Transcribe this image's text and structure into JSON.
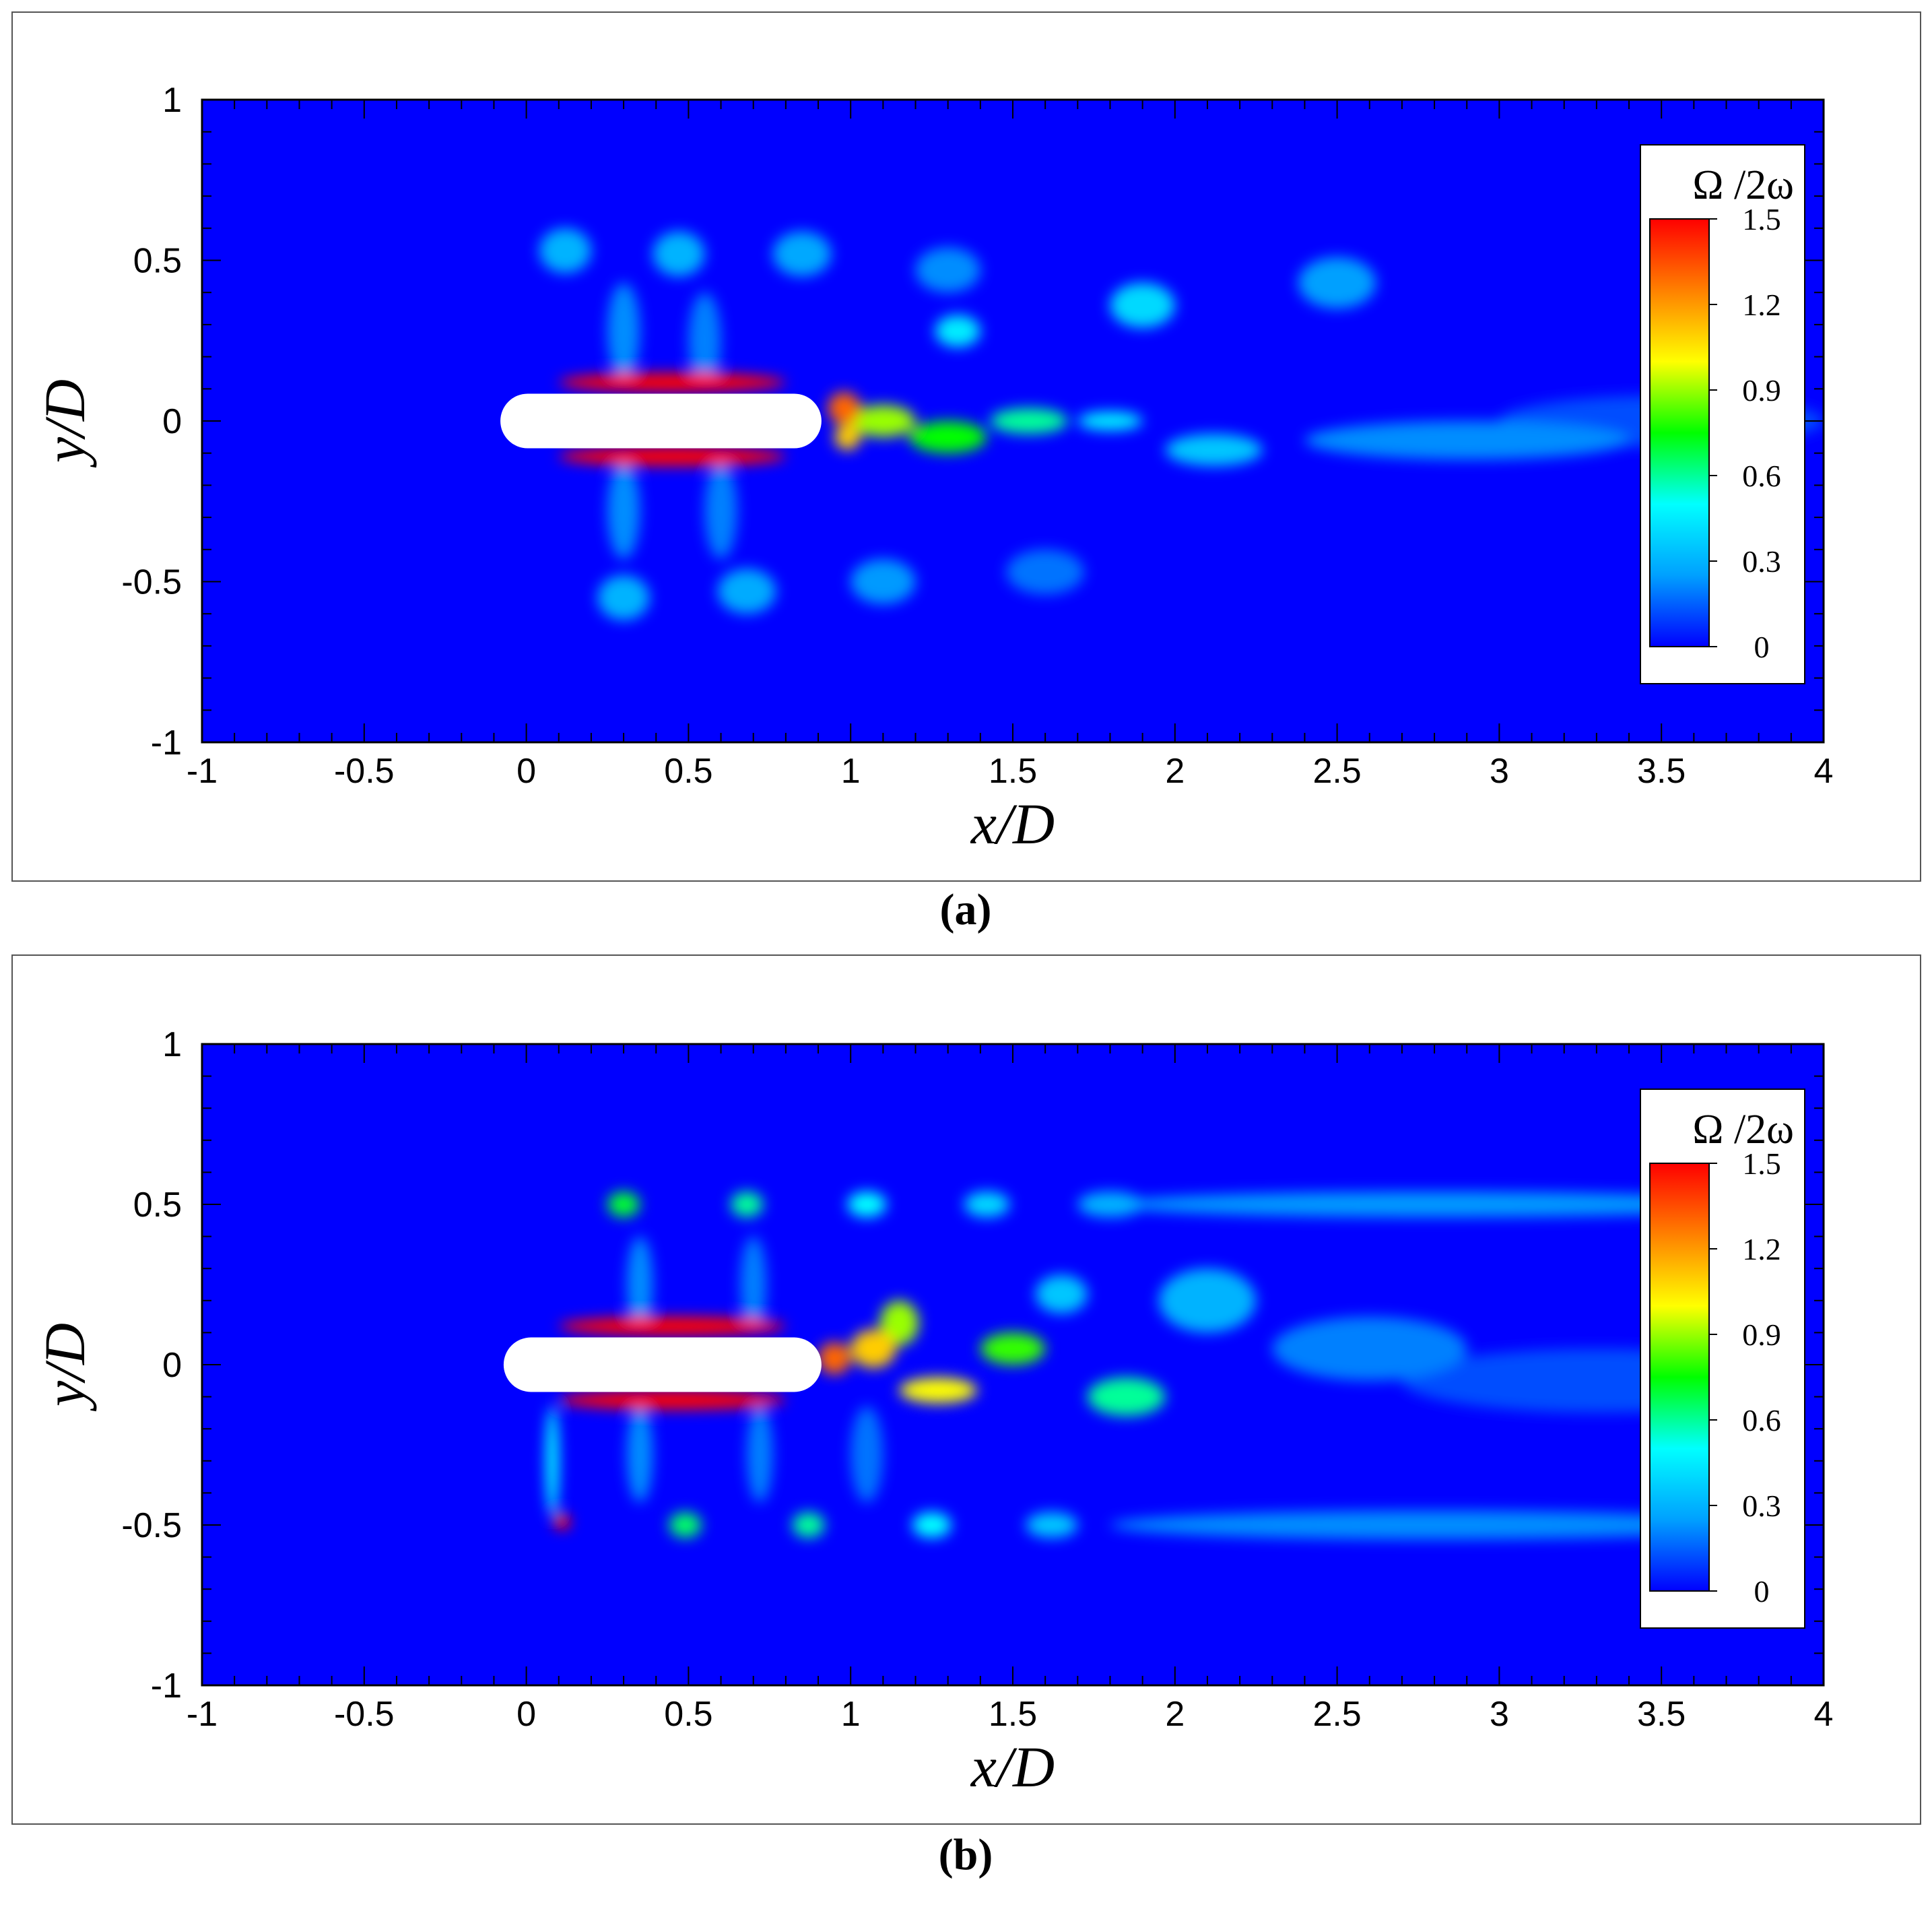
{
  "panel_captions": [
    "(a)",
    "(b)"
  ],
  "chart_data": [
    {
      "type": "heatmap",
      "panel": "(a)",
      "xlabel": "x/D",
      "ylabel": "y/D",
      "xlim": [
        -1,
        4
      ],
      "ylim": [
        -1,
        1
      ],
      "xticks": [
        -1,
        -0.5,
        0,
        0.5,
        1,
        1.5,
        2,
        2.5,
        3,
        3.5,
        4
      ],
      "xtick_labels": [
        "-1",
        "-0.5",
        "0",
        "0.5",
        "1",
        "1.5",
        "2",
        "2.5",
        "3",
        "3.5",
        "4"
      ],
      "yticks": [
        -1,
        -0.5,
        0,
        0.5,
        1
      ],
      "ytick_labels": [
        "-1",
        "-0.5",
        "0",
        "0.5",
        "1"
      ],
      "colorbar": {
        "label": "Ω /2ω",
        "range": [
          0,
          1.5
        ],
        "ticks": [
          0,
          0.3,
          0.6,
          0.9,
          1.2,
          1.5
        ],
        "tick_labels": [
          "0",
          "0.3",
          "0.6",
          "0.9",
          "1.2",
          "1.5"
        ],
        "placement": "right-inside",
        "colors": [
          "#0000ff",
          "#00a0ff",
          "#00ffff",
          "#00ff00",
          "#ffff00",
          "#ff8000",
          "#ff0000"
        ]
      },
      "body": {
        "x_start": -0.08,
        "x_end": 0.91,
        "y_center": 0.0,
        "thickness": 0.17
      },
      "features": [
        {
          "x": 0.45,
          "y": 0.12,
          "sx": 0.35,
          "sy": 0.03,
          "v": 1.5
        },
        {
          "x": 0.45,
          "y": -0.11,
          "sx": 0.35,
          "sy": 0.03,
          "v": 1.5
        },
        {
          "x": 0.98,
          "y": 0.04,
          "sx": 0.05,
          "sy": 0.05,
          "v": 1.3
        },
        {
          "x": 0.99,
          "y": -0.05,
          "sx": 0.04,
          "sy": 0.04,
          "v": 1.1
        },
        {
          "x": 1.1,
          "y": 0.0,
          "sx": 0.1,
          "sy": 0.05,
          "v": 0.9
        },
        {
          "x": 1.3,
          "y": -0.05,
          "sx": 0.12,
          "sy": 0.05,
          "v": 0.75
        },
        {
          "x": 1.55,
          "y": 0.0,
          "sx": 0.12,
          "sy": 0.04,
          "v": 0.6
        },
        {
          "x": 1.8,
          "y": 0.0,
          "sx": 0.1,
          "sy": 0.03,
          "v": 0.45
        },
        {
          "x": 1.33,
          "y": 0.28,
          "sx": 0.07,
          "sy": 0.05,
          "v": 0.45
        },
        {
          "x": 1.9,
          "y": 0.36,
          "sx": 0.1,
          "sy": 0.07,
          "v": 0.4
        },
        {
          "x": 2.5,
          "y": 0.43,
          "sx": 0.12,
          "sy": 0.08,
          "v": 0.25
        },
        {
          "x": 2.12,
          "y": -0.09,
          "sx": 0.15,
          "sy": 0.05,
          "v": 0.35
        },
        {
          "x": 2.9,
          "y": -0.06,
          "sx": 0.5,
          "sy": 0.06,
          "v": 0.22
        },
        {
          "x": 3.5,
          "y": 0.0,
          "sx": 0.5,
          "sy": 0.08,
          "v": 0.12
        },
        {
          "x": 0.12,
          "y": 0.53,
          "sx": 0.08,
          "sy": 0.07,
          "v": 0.3
        },
        {
          "x": 0.47,
          "y": 0.52,
          "sx": 0.08,
          "sy": 0.07,
          "v": 0.3
        },
        {
          "x": 0.85,
          "y": 0.52,
          "sx": 0.09,
          "sy": 0.07,
          "v": 0.27
        },
        {
          "x": 1.3,
          "y": 0.47,
          "sx": 0.1,
          "sy": 0.07,
          "v": 0.22
        },
        {
          "x": 0.3,
          "y": -0.55,
          "sx": 0.08,
          "sy": 0.07,
          "v": 0.3
        },
        {
          "x": 0.68,
          "y": -0.53,
          "sx": 0.09,
          "sy": 0.07,
          "v": 0.28
        },
        {
          "x": 1.1,
          "y": -0.5,
          "sx": 0.1,
          "sy": 0.07,
          "v": 0.24
        },
        {
          "x": 1.6,
          "y": -0.47,
          "sx": 0.12,
          "sy": 0.07,
          "v": 0.18
        },
        {
          "x": 0.3,
          "y": 0.28,
          "sx": 0.05,
          "sy": 0.15,
          "v": 0.22
        },
        {
          "x": 0.55,
          "y": 0.25,
          "sx": 0.05,
          "sy": 0.15,
          "v": 0.2
        },
        {
          "x": 0.3,
          "y": -0.28,
          "sx": 0.05,
          "sy": 0.15,
          "v": 0.22
        },
        {
          "x": 0.6,
          "y": -0.28,
          "sx": 0.05,
          "sy": 0.15,
          "v": 0.2
        }
      ]
    },
    {
      "type": "heatmap",
      "panel": "(b)",
      "xlabel": "x/D",
      "ylabel": "y/D",
      "xlim": [
        -1,
        4
      ],
      "ylim": [
        -1,
        1
      ],
      "xticks": [
        -1,
        -0.5,
        0,
        0.5,
        1,
        1.5,
        2,
        2.5,
        3,
        3.5,
        4
      ],
      "xtick_labels": [
        "-1",
        "-0.5",
        "0",
        "0.5",
        "1",
        "1.5",
        "2",
        "2.5",
        "3",
        "3.5",
        "4"
      ],
      "yticks": [
        -1,
        -0.5,
        0,
        0.5,
        1
      ],
      "ytick_labels": [
        "-1",
        "-0.5",
        "0",
        "0.5",
        "1"
      ],
      "colorbar": {
        "label": "Ω /2ω",
        "range": [
          0,
          1.5
        ],
        "ticks": [
          0,
          0.3,
          0.6,
          0.9,
          1.2,
          1.5
        ],
        "tick_labels": [
          "0",
          "0.3",
          "0.6",
          "0.9",
          "1.2",
          "1.5"
        ],
        "placement": "right-inside",
        "colors": [
          "#0000ff",
          "#00a0ff",
          "#00ffff",
          "#00ff00",
          "#ffff00",
          "#ff8000",
          "#ff0000"
        ]
      },
      "body": {
        "x_start": -0.07,
        "x_end": 0.91,
        "y_center": 0.0,
        "thickness": 0.17
      },
      "features": [
        {
          "x": 0.45,
          "y": 0.12,
          "sx": 0.35,
          "sy": 0.03,
          "v": 1.5
        },
        {
          "x": 0.45,
          "y": -0.11,
          "sx": 0.35,
          "sy": 0.03,
          "v": 1.5
        },
        {
          "x": 0.95,
          "y": 0.02,
          "sx": 0.05,
          "sy": 0.05,
          "v": 1.3
        },
        {
          "x": 1.07,
          "y": 0.05,
          "sx": 0.07,
          "sy": 0.06,
          "v": 1.1
        },
        {
          "x": 1.15,
          "y": 0.13,
          "sx": 0.06,
          "sy": 0.07,
          "v": 0.9
        },
        {
          "x": 1.27,
          "y": -0.08,
          "sx": 0.12,
          "sy": 0.04,
          "v": 1.0
        },
        {
          "x": 1.5,
          "y": 0.05,
          "sx": 0.1,
          "sy": 0.05,
          "v": 0.8
        },
        {
          "x": 1.85,
          "y": -0.1,
          "sx": 0.12,
          "sy": 0.06,
          "v": 0.6
        },
        {
          "x": 1.65,
          "y": 0.22,
          "sx": 0.08,
          "sy": 0.06,
          "v": 0.35
        },
        {
          "x": 2.1,
          "y": 0.2,
          "sx": 0.15,
          "sy": 0.1,
          "v": 0.3
        },
        {
          "x": 2.6,
          "y": 0.05,
          "sx": 0.3,
          "sy": 0.1,
          "v": 0.2
        },
        {
          "x": 3.3,
          "y": -0.05,
          "sx": 0.6,
          "sy": 0.1,
          "v": 0.12
        },
        {
          "x": 0.3,
          "y": 0.5,
          "sx": 0.05,
          "sy": 0.04,
          "v": 0.7
        },
        {
          "x": 0.68,
          "y": 0.5,
          "sx": 0.05,
          "sy": 0.04,
          "v": 0.6
        },
        {
          "x": 1.05,
          "y": 0.5,
          "sx": 0.06,
          "sy": 0.04,
          "v": 0.5
        },
        {
          "x": 1.42,
          "y": 0.5,
          "sx": 0.07,
          "sy": 0.04,
          "v": 0.4
        },
        {
          "x": 1.8,
          "y": 0.5,
          "sx": 0.1,
          "sy": 0.04,
          "v": 0.3
        },
        {
          "x": 2.8,
          "y": 0.5,
          "sx": 1.0,
          "sy": 0.04,
          "v": 0.24
        },
        {
          "x": 0.11,
          "y": -0.49,
          "sx": 0.025,
          "sy": 0.025,
          "v": 1.5
        },
        {
          "x": 0.08,
          "y": -0.3,
          "sx": 0.02,
          "sy": 0.17,
          "v": 0.5
        },
        {
          "x": 0.49,
          "y": -0.5,
          "sx": 0.05,
          "sy": 0.04,
          "v": 0.65
        },
        {
          "x": 0.87,
          "y": -0.5,
          "sx": 0.05,
          "sy": 0.04,
          "v": 0.6
        },
        {
          "x": 1.25,
          "y": -0.5,
          "sx": 0.06,
          "sy": 0.04,
          "v": 0.5
        },
        {
          "x": 1.62,
          "y": -0.5,
          "sx": 0.08,
          "sy": 0.04,
          "v": 0.35
        },
        {
          "x": 2.8,
          "y": -0.5,
          "sx": 1.0,
          "sy": 0.045,
          "v": 0.22
        },
        {
          "x": 0.35,
          "y": 0.25,
          "sx": 0.04,
          "sy": 0.15,
          "v": 0.22
        },
        {
          "x": 0.7,
          "y": 0.25,
          "sx": 0.04,
          "sy": 0.15,
          "v": 0.2
        },
        {
          "x": 0.35,
          "y": -0.28,
          "sx": 0.04,
          "sy": 0.15,
          "v": 0.22
        },
        {
          "x": 0.72,
          "y": -0.28,
          "sx": 0.04,
          "sy": 0.15,
          "v": 0.2
        },
        {
          "x": 1.05,
          "y": -0.28,
          "sx": 0.05,
          "sy": 0.15,
          "v": 0.18
        }
      ]
    }
  ]
}
